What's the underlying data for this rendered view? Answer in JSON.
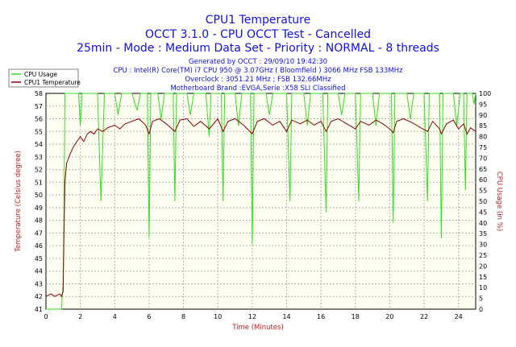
{
  "header": {
    "title": "CPU1 Temperature",
    "subtitle1": "OCCT 3.1.0 - CPU OCCT Test - Cancelled",
    "subtitle2": "25min - Mode : Medium Data Set - Priority : NORMAL - 8 threads",
    "info1": "Generated by OCCT : 29/09/10 19:42:30",
    "info2": "CPU : Intel(R) Core(TM) i7 CPU 950 @ 3.07GHz ( Bloomfield ) 3066 MHz FSB 133MHz",
    "info3": "Overclock : 3051.21 MHz ; FSB 132.66MHz",
    "info4": "Motherboard Brand :EVGA,Serie :X58 SLI Classified"
  },
  "colors": {
    "cpu_usage": "#33dd22",
    "cpu_temp": "#8b0000",
    "title": "#1010e0",
    "axis_title": "#c02020",
    "grid": "#b0b0b0"
  },
  "chart_data": {
    "type": "line",
    "title": "CPU1 Temperature",
    "xlabel": "Time (Minutes)",
    "ylabel": "Temperature (Celsius degree)",
    "y2label": "CPU Usage (in %)",
    "xlim": [
      0,
      25
    ],
    "ylim": [
      41,
      58
    ],
    "y2lim": [
      0,
      100
    ],
    "x_ticks": [
      "0",
      "2",
      "4",
      "6",
      "8",
      "10",
      "12",
      "14",
      "16",
      "18",
      "20",
      "22",
      "24"
    ],
    "y_ticks": [
      "41",
      "42",
      "43",
      "44",
      "45",
      "46",
      "47",
      "48",
      "49",
      "50",
      "51",
      "52",
      "53",
      "54",
      "55",
      "56",
      "57",
      "58"
    ],
    "y2_ticks": [
      "0",
      "5",
      "10",
      "15",
      "20",
      "25",
      "30",
      "35",
      "40",
      "45",
      "50",
      "55",
      "60",
      "65",
      "70",
      "75",
      "80",
      "85",
      "90",
      "95",
      "100"
    ],
    "grid": true,
    "legend_position": "top-left",
    "series": [
      {
        "name": "CPU Usage",
        "axis": "right",
        "points": [
          [
            0.0,
            0
          ],
          [
            0.5,
            0
          ],
          [
            0.9,
            0
          ],
          [
            1.0,
            12
          ],
          [
            1.05,
            45
          ],
          [
            1.1,
            100
          ],
          [
            1.9,
            100
          ],
          [
            2.0,
            85
          ],
          [
            2.1,
            100
          ],
          [
            3.0,
            100
          ],
          [
            3.2,
            50
          ],
          [
            3.4,
            100
          ],
          [
            4.0,
            100
          ],
          [
            4.2,
            90
          ],
          [
            4.4,
            100
          ],
          [
            5.0,
            100
          ],
          [
            5.3,
            92
          ],
          [
            5.5,
            100
          ],
          [
            5.9,
            100
          ],
          [
            6.0,
            33
          ],
          [
            6.1,
            100
          ],
          [
            6.5,
            100
          ],
          [
            6.7,
            88
          ],
          [
            6.9,
            100
          ],
          [
            7.4,
            100
          ],
          [
            7.5,
            50
          ],
          [
            7.6,
            100
          ],
          [
            8.2,
            100
          ],
          [
            8.4,
            90
          ],
          [
            8.6,
            100
          ],
          [
            9.3,
            100
          ],
          [
            9.5,
            80
          ],
          [
            9.6,
            100
          ],
          [
            10.2,
            100
          ],
          [
            10.3,
            50
          ],
          [
            10.4,
            100
          ],
          [
            11.0,
            100
          ],
          [
            11.2,
            85
          ],
          [
            11.4,
            100
          ],
          [
            11.9,
            100
          ],
          [
            12.0,
            30
          ],
          [
            12.1,
            100
          ],
          [
            12.8,
            100
          ],
          [
            13.0,
            90
          ],
          [
            13.2,
            100
          ],
          [
            14.0,
            100
          ],
          [
            14.2,
            50
          ],
          [
            14.3,
            100
          ],
          [
            15.0,
            100
          ],
          [
            15.2,
            85
          ],
          [
            15.4,
            100
          ],
          [
            16.1,
            100
          ],
          [
            16.3,
            45
          ],
          [
            16.4,
            100
          ],
          [
            17.0,
            100
          ],
          [
            17.2,
            90
          ],
          [
            17.4,
            100
          ],
          [
            18.0,
            100
          ],
          [
            18.2,
            50
          ],
          [
            18.3,
            100
          ],
          [
            19.0,
            100
          ],
          [
            19.2,
            85
          ],
          [
            19.4,
            100
          ],
          [
            20.1,
            100
          ],
          [
            20.2,
            40
          ],
          [
            20.3,
            100
          ],
          [
            21.0,
            100
          ],
          [
            21.2,
            88
          ],
          [
            21.4,
            100
          ],
          [
            22.0,
            100
          ],
          [
            22.2,
            50
          ],
          [
            22.3,
            100
          ],
          [
            22.9,
            100
          ],
          [
            23.0,
            33
          ],
          [
            23.1,
            100
          ],
          [
            23.7,
            100
          ],
          [
            23.9,
            85
          ],
          [
            24.1,
            100
          ],
          [
            24.3,
            100
          ],
          [
            24.4,
            55
          ],
          [
            24.5,
            100
          ],
          [
            24.8,
            100
          ],
          [
            24.9,
            95
          ],
          [
            25.0,
            100
          ]
        ]
      },
      {
        "name": "CPU1 Temperature",
        "axis": "left",
        "points": [
          [
            0.0,
            42
          ],
          [
            0.3,
            42.2
          ],
          [
            0.5,
            42.0
          ],
          [
            0.8,
            42.2
          ],
          [
            0.9,
            42.0
          ],
          [
            1.0,
            42.4
          ],
          [
            1.05,
            47
          ],
          [
            1.1,
            51
          ],
          [
            1.2,
            52.5
          ],
          [
            1.4,
            53.2
          ],
          [
            1.6,
            53.8
          ],
          [
            1.8,
            54.2
          ],
          [
            2.0,
            54.6
          ],
          [
            2.2,
            54.2
          ],
          [
            2.4,
            54.8
          ],
          [
            2.6,
            55.0
          ],
          [
            2.8,
            54.8
          ],
          [
            3.0,
            55.2
          ],
          [
            3.3,
            55.0
          ],
          [
            3.6,
            55.3
          ],
          [
            4.0,
            55.5
          ],
          [
            4.3,
            55.2
          ],
          [
            4.6,
            55.6
          ],
          [
            5.0,
            55.8
          ],
          [
            5.4,
            56.0
          ],
          [
            5.8,
            55.5
          ],
          [
            6.0,
            54.8
          ],
          [
            6.2,
            55.8
          ],
          [
            6.6,
            56.0
          ],
          [
            7.0,
            55.6
          ],
          [
            7.5,
            55.0
          ],
          [
            7.8,
            55.9
          ],
          [
            8.2,
            56.0
          ],
          [
            8.6,
            55.4
          ],
          [
            9.0,
            55.8
          ],
          [
            9.5,
            55.2
          ],
          [
            10.0,
            56.0
          ],
          [
            10.3,
            55.0
          ],
          [
            10.6,
            55.8
          ],
          [
            11.0,
            56.0
          ],
          [
            11.5,
            55.5
          ],
          [
            12.0,
            54.8
          ],
          [
            12.3,
            55.8
          ],
          [
            12.7,
            56.0
          ],
          [
            13.2,
            55.5
          ],
          [
            13.6,
            55.8
          ],
          [
            14.0,
            55.0
          ],
          [
            14.3,
            55.9
          ],
          [
            14.8,
            55.6
          ],
          [
            15.2,
            55.9
          ],
          [
            15.6,
            55.5
          ],
          [
            16.0,
            55.8
          ],
          [
            16.3,
            55.0
          ],
          [
            16.6,
            55.8
          ],
          [
            17.0,
            56.0
          ],
          [
            17.5,
            55.6
          ],
          [
            18.0,
            55.2
          ],
          [
            18.3,
            55.8
          ],
          [
            18.8,
            55.5
          ],
          [
            19.2,
            55.9
          ],
          [
            19.6,
            55.6
          ],
          [
            20.0,
            55.2
          ],
          [
            20.2,
            54.9
          ],
          [
            20.4,
            55.8
          ],
          [
            20.8,
            56.0
          ],
          [
            21.3,
            55.7
          ],
          [
            21.8,
            55.3
          ],
          [
            22.2,
            55.0
          ],
          [
            22.5,
            55.8
          ],
          [
            22.9,
            55.2
          ],
          [
            23.0,
            54.8
          ],
          [
            23.3,
            55.6
          ],
          [
            23.7,
            55.9
          ],
          [
            24.0,
            55.2
          ],
          [
            24.3,
            55.6
          ],
          [
            24.5,
            54.8
          ],
          [
            24.7,
            55.3
          ],
          [
            25.0,
            55.0
          ]
        ]
      }
    ]
  }
}
